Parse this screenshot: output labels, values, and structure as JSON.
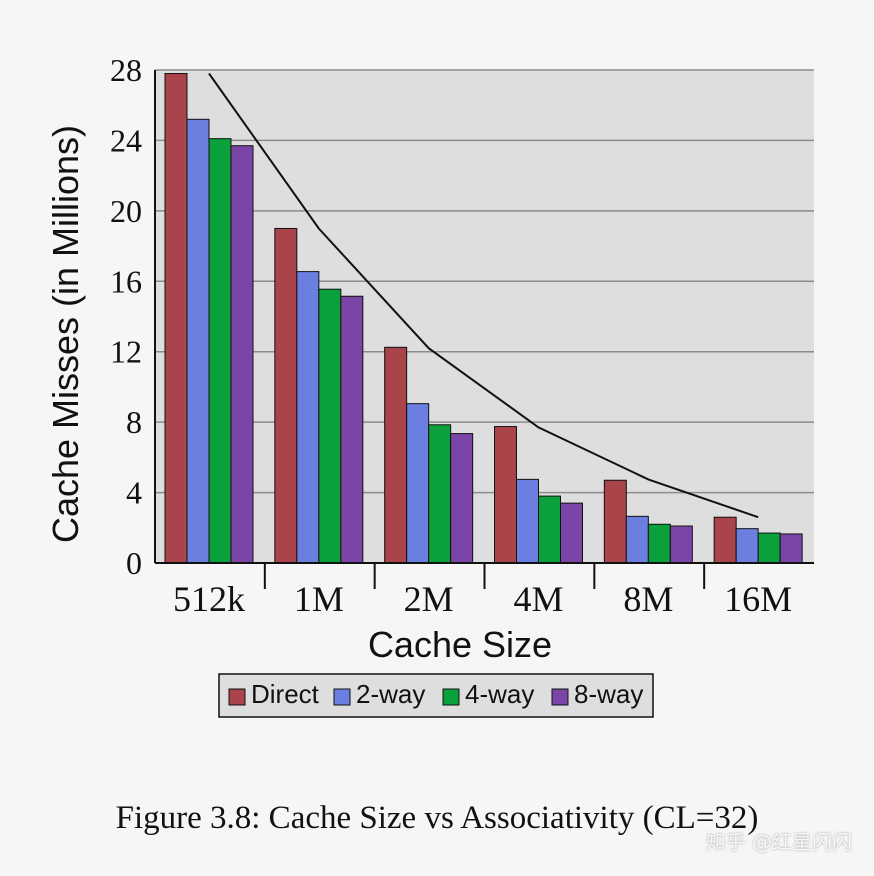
{
  "chart_data": {
    "type": "bar",
    "categories": [
      "512k",
      "1M",
      "2M",
      "4M",
      "8M",
      "16M"
    ],
    "series": [
      {
        "name": "Direct",
        "color": "#a8444a",
        "values": [
          27.8,
          19.0,
          12.25,
          7.75,
          4.7,
          2.6
        ]
      },
      {
        "name": "2-way",
        "color": "#6a7fe0",
        "values": [
          25.2,
          16.55,
          9.05,
          4.75,
          2.65,
          1.95
        ]
      },
      {
        "name": "4-way",
        "color": "#0aa03c",
        "values": [
          24.1,
          15.55,
          7.85,
          3.8,
          2.2,
          1.7
        ]
      },
      {
        "name": "8-way",
        "color": "#7b45a8",
        "values": [
          23.7,
          15.15,
          7.35,
          3.4,
          2.1,
          1.65
        ]
      }
    ],
    "line": {
      "values": [
        27.8,
        19.0,
        12.2,
        7.7,
        4.75,
        2.6
      ]
    },
    "xlabel": "Cache Size",
    "ylabel": "Cache Misses (in Millions)",
    "ylim": [
      0,
      28
    ],
    "yticks": [
      0,
      4,
      8,
      12,
      16,
      20,
      24,
      28
    ],
    "grid": true,
    "legend": "bottom"
  },
  "caption": "Figure 3.8: Cache Size vs Associativity (CL=32)",
  "watermark": "知乎 @红星闪闪"
}
